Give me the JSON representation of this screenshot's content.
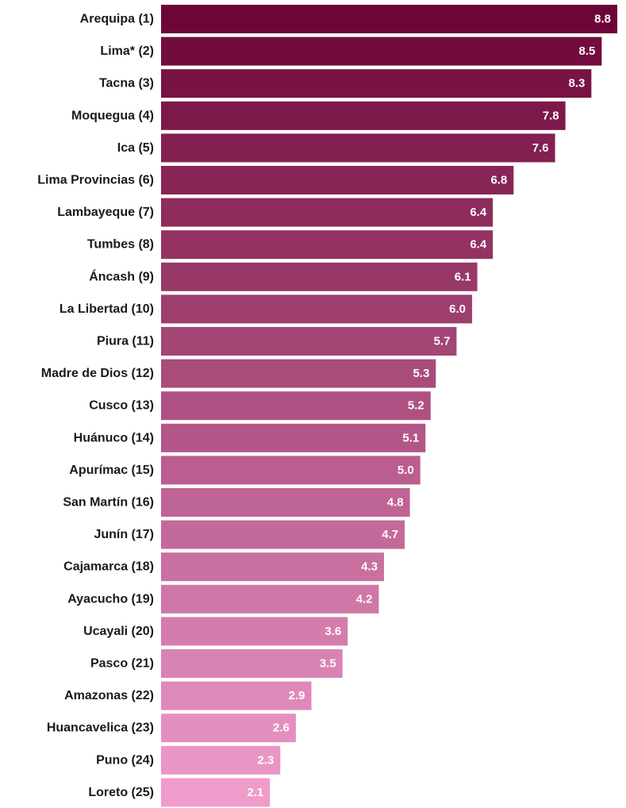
{
  "chart_data": {
    "type": "bar",
    "orientation": "horizontal",
    "categories": [
      "Arequipa (1)",
      "Lima* (2)",
      "Tacna (3)",
      "Moquegua (4)",
      "Ica (5)",
      "Lima Provincias (6)",
      "Lambayeque (7)",
      "Tumbes (8)",
      "Áncash (9)",
      "La Libertad (10)",
      "Piura (11)",
      "Madre de Dios (12)",
      "Cusco (13)",
      "Huánuco (14)",
      "Apurímac (15)",
      "San Martín (16)",
      "Junín (17)",
      "Cajamarca (18)",
      "Ayacucho (19)",
      "Ucayali (20)",
      "Pasco (21)",
      "Amazonas (22)",
      "Huancavelica (23)",
      "Puno (24)",
      "Loreto (25)"
    ],
    "values": [
      8.8,
      8.5,
      8.3,
      7.8,
      7.6,
      6.8,
      6.4,
      6.4,
      6.1,
      6.0,
      5.7,
      5.3,
      5.2,
      5.1,
      5.0,
      4.8,
      4.7,
      4.3,
      4.2,
      3.6,
      3.5,
      2.9,
      2.6,
      2.3,
      2.1
    ],
    "value_labels": [
      "8.8",
      "8.5",
      "8.3",
      "7.8",
      "7.6",
      "6.8",
      "6.4",
      "6.4",
      "6.1",
      "6.0",
      "5.7",
      "5.3",
      "5.2",
      "5.1",
      "5.0",
      "4.8",
      "4.7",
      "4.3",
      "4.2",
      "3.6",
      "3.5",
      "2.9",
      "2.6",
      "2.3",
      "2.1"
    ],
    "xlim": [
      0,
      8.8
    ],
    "title": "",
    "xlabel": "",
    "ylabel": "",
    "grid": false,
    "legend": "none",
    "colors": {
      "top": "#6d0638",
      "bottom": "#ef9ccb",
      "value_text": "#ffffff",
      "label_text": "#1a1a1a"
    }
  }
}
